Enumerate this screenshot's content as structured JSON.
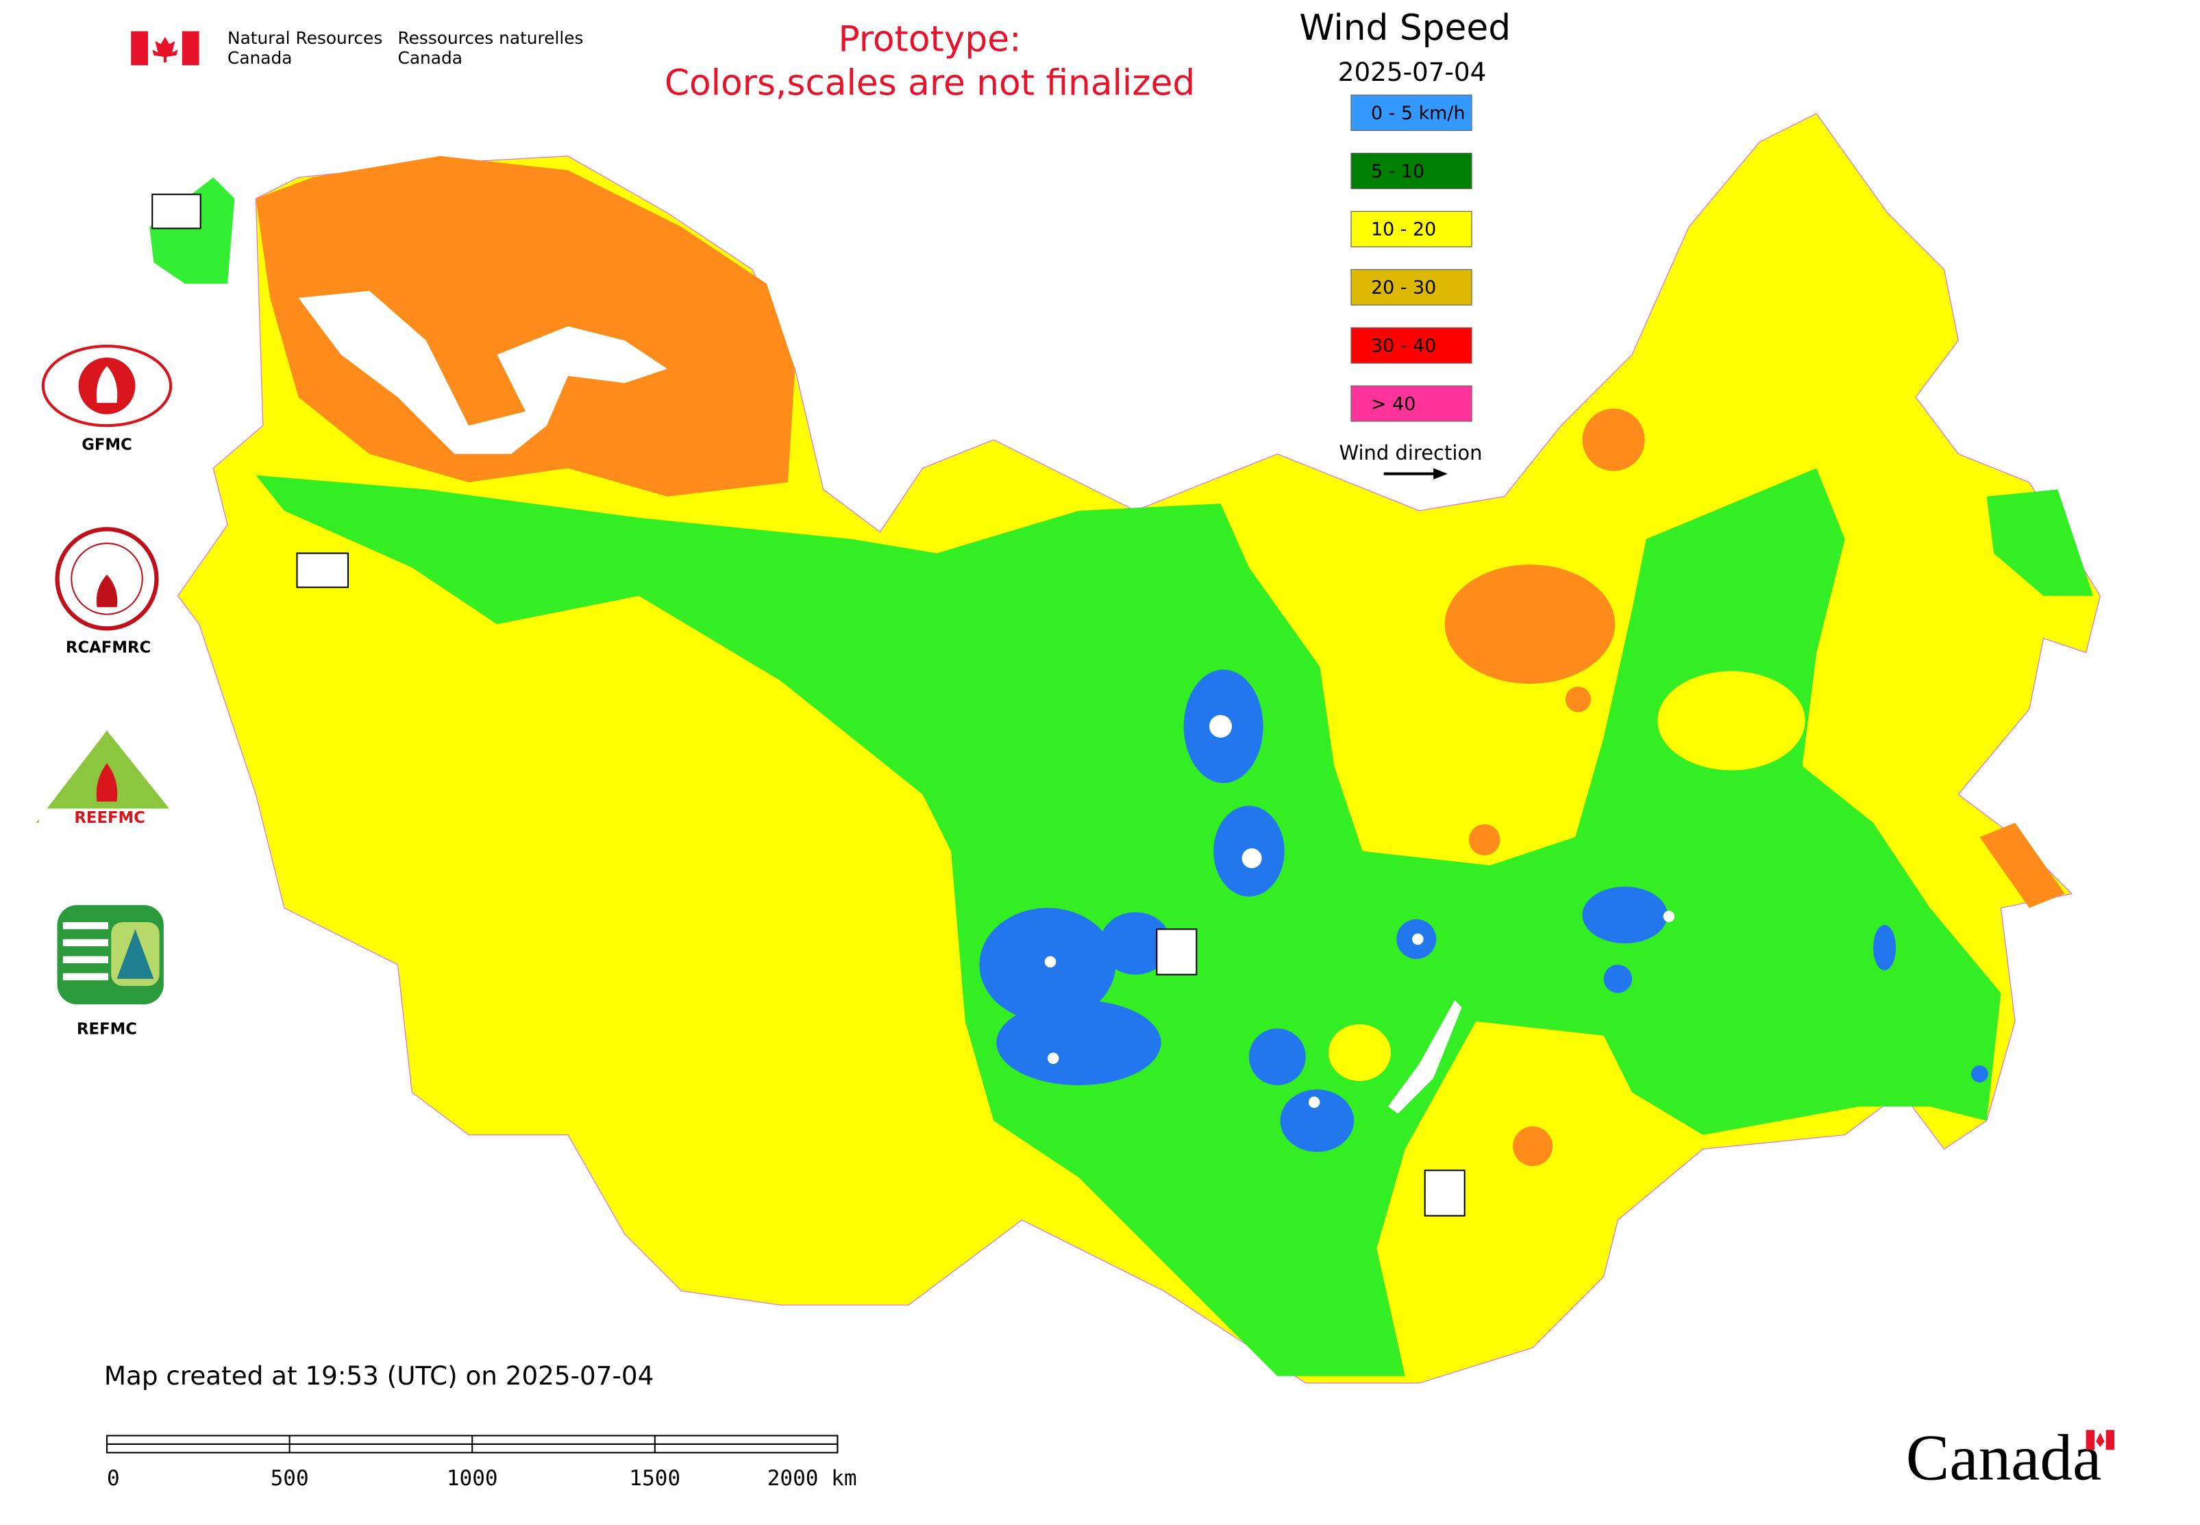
{
  "header": {
    "en_line1": "Natural Resources",
    "en_line2": "Canada",
    "fr_line1": "Ressources naturelles",
    "fr_line2": "Canada"
  },
  "notice": [
    "Prototype:",
    "Colors,scales are not finalized"
  ],
  "title": "Wind Speed",
  "date": "2025-07-04",
  "legend": [
    {
      "label": "0 - 5 km/h",
      "color": "#3399ff"
    },
    {
      "label": "5 - 10",
      "color": "#008000"
    },
    {
      "label": "10 - 20",
      "color": "#ffff00"
    },
    {
      "label": "20 - 30",
      "color": "#ddb800"
    },
    {
      "label": "30 - 40",
      "color": "#ff0000"
    },
    {
      "label": "> 40",
      "color": "#ff3399"
    }
  ],
  "wind_direction": "Wind direction",
  "logos": [
    "GFMC",
    "RCAFMRC",
    "REEFMC",
    "REFMC"
  ],
  "footer": "Map created at 19:53 (UTC) on 2025-07-04",
  "scale_bar": [
    "0",
    "500",
    "1000",
    "1500",
    "2000 km"
  ],
  "wordmark": "Canada"
}
